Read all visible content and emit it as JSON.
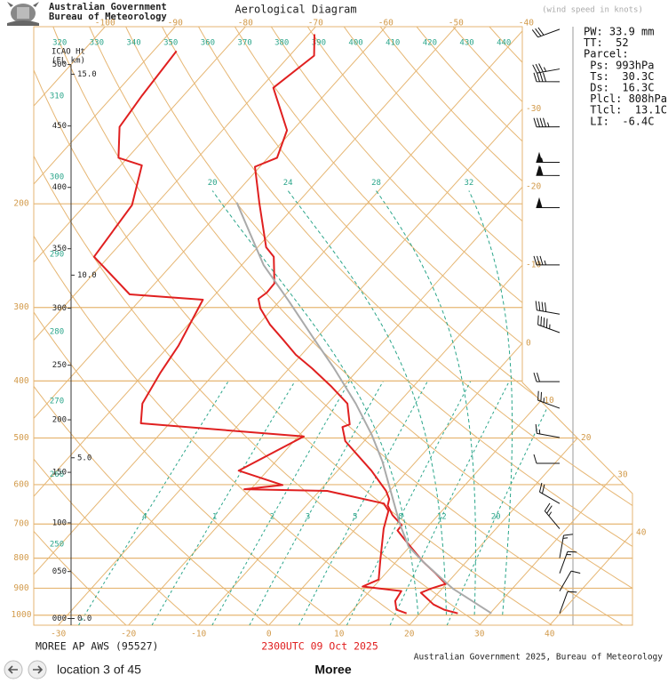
{
  "header": {
    "org_line1": "Australian Government",
    "org_line2": "Bureau of Meteorology"
  },
  "chart_data": {
    "type": "skewt",
    "title": "Aerological Diagram",
    "subtitle": "(wind speed in knots)",
    "ylim": [
      1040,
      100
    ],
    "log_y": true,
    "yticks": [
      1000,
      900,
      800,
      700,
      600,
      500,
      400,
      300,
      200
    ],
    "xlim": [
      -33.5,
      51.8
    ],
    "xticks": [
      -30,
      -20,
      -10,
      0,
      10,
      20,
      30,
      40
    ],
    "top_xticks": [
      -100,
      -90,
      -80,
      -70,
      -60,
      -50,
      -40
    ],
    "dry_adiabats": [
      250,
      260,
      270,
      280,
      290,
      300,
      310,
      320,
      330,
      340,
      350,
      360,
      370,
      380,
      390,
      400,
      410,
      420,
      430,
      440
    ],
    "moist_adiabats": [
      20,
      24,
      28,
      32
    ],
    "mixing_ratios": [
      {
        "value": 0.4,
        "label": "4"
      },
      1,
      2,
      3,
      5,
      8,
      12,
      20
    ],
    "height_axis": {
      "title": [
        "ICAO Ht",
        "(FL  km)"
      ],
      "fl": [
        500,
        450,
        400,
        350,
        300,
        250,
        200,
        150,
        {
          "value": 100,
          "label": "100"
        },
        {
          "value": 50,
          "label": "050"
        },
        {
          "value": 0,
          "label": "000"
        }
      ],
      "km": [
        {
          "value": 15,
          "label": "15.0"
        },
        {
          "value": 10,
          "label": "10.0"
        },
        {
          "value": 5,
          "label": "5.0"
        },
        {
          "value": 0,
          "label": "0.0"
        }
      ]
    },
    "series": [
      {
        "color": "#e02020",
        "pressure": [
          993,
          979,
          959,
          916,
          901,
          885,
          849,
          811,
          778,
          743,
          718,
          703,
          676,
          651,
          635,
          615,
          568,
          530,
          506,
          479,
          474,
          437,
          408,
          381,
          361,
          340,
          321,
          301,
          290,
          283,
          273,
          246,
          237,
          199,
          173,
          167,
          150,
          127,
          112,
          103
        ],
        "values": [
          25.4,
          23.0,
          20.8,
          17.5,
          18.4,
          19.9,
          17.1,
          13.8,
          11.2,
          8.3,
          6.2,
          6.1,
          3.5,
          1.6,
          1.0,
          -0.5,
          -5.2,
          -9.7,
          -12.7,
          -14.9,
          -14.2,
          -17.2,
          -21.8,
          -26.7,
          -30.8,
          -34.6,
          -38.3,
          -41.8,
          -43.3,
          -42.9,
          -43.0,
          -46.5,
          -48.8,
          -55.5,
          -60.7,
          -58.7,
          -60.8,
          -68.2,
          -66.5,
          -69.2
        ]
      },
      {
        "color": "#e02020",
        "pressure": [
          993,
          979,
          946,
          910,
          894,
          870,
          805,
          713,
          665,
          646,
          615,
          611,
          601,
          568,
          497,
          472,
          437,
          387,
          348,
          291,
          285,
          246,
          201,
          172,
          167,
          148,
          131,
          110
        ],
        "values": [
          18.1,
          16.2,
          14.9,
          14.5,
          8.4,
          9.8,
          7.5,
          4.0,
          2.4,
          0.8,
          -8.9,
          -20.9,
          -16.0,
          -24.1,
          -19.2,
          -44.1,
          -46.4,
          -47.8,
          -48.7,
          -51.1,
          -62.2,
          -72.1,
          -73.3,
          -77.0,
          -81.3,
          -85.1,
          -85.9,
          -86.7
        ]
      },
      {
        "color": "#aaaaaa",
        "pressure": [
          993,
          901,
          811,
          764,
          700,
          620,
          548,
          494,
          437,
          380,
          336,
          293,
          254,
          199
        ],
        "values": [
          30.2,
          21.5,
          13.8,
          9.8,
          5.7,
          0.5,
          -4.8,
          -9.7,
          -16.0,
          -23.7,
          -30.8,
          -38.6,
          -46.9,
          -58.7
        ]
      }
    ],
    "winds": {
      "pressure": [
        101,
        118,
        124,
        148,
        170,
        179,
        203,
        254,
        308,
        331,
        401,
        445,
        499,
        552,
        646,
        713,
        800,
        849,
        910,
        993
      ],
      "speed": [
        30,
        35,
        40,
        45,
        55,
        60,
        50,
        35,
        40,
        45,
        20,
        25,
        15,
        10,
        20,
        25,
        15,
        15,
        10,
        10
      ],
      "direction": [
        250,
        260,
        270,
        270,
        270,
        270,
        270,
        270,
        280,
        290,
        270,
        290,
        280,
        270,
        300,
        320,
        10,
        20,
        30,
        20
      ]
    }
  },
  "info_panel": {
    "lines": [
      "PW: 33.9 mm",
      "TT:  52",
      "Parcel:",
      " Ps: 993hPa",
      " Ts:  30.3C",
      " Ds:  16.3C",
      " Plcl: 808hPa",
      " Tlcl:  13.1C",
      " LI:  -6.4C"
    ]
  },
  "footer": {
    "station": "MOREE AP AWS (95527)",
    "time": "2300UTC 09 Oct 2025",
    "copyright": "Australian Government 2025, Bureau of Meteorology",
    "location": "location 3 of 45",
    "name": "Moree"
  }
}
